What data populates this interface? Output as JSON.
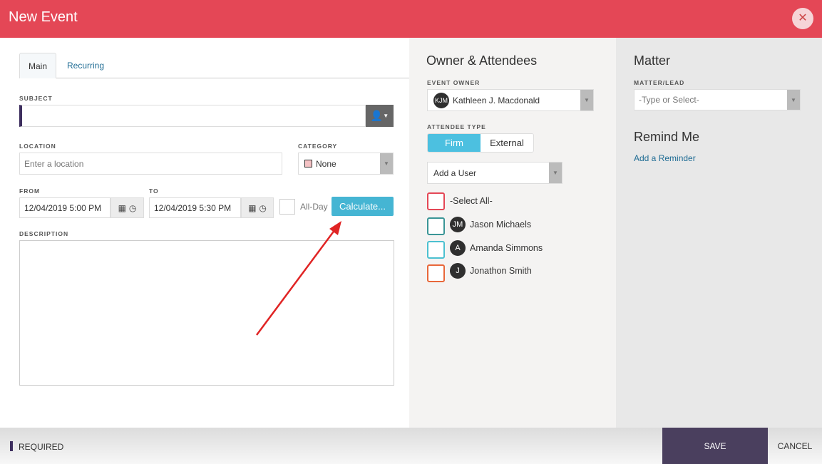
{
  "header": {
    "title": "New Event",
    "close_icon": "close-icon"
  },
  "tabs": [
    {
      "label": "Main",
      "active": true
    },
    {
      "label": "Recurring",
      "active": false
    }
  ],
  "form": {
    "subject": {
      "label": "SUBJECT",
      "value": ""
    },
    "location": {
      "label": "LOCATION",
      "placeholder": "Enter a location"
    },
    "category": {
      "label": "CATEGORY",
      "value": "None",
      "swatch": "#f4c2c4"
    },
    "from": {
      "label": "FROM",
      "value": "12/04/2019 5:00 PM"
    },
    "to": {
      "label": "TO",
      "value": "12/04/2019 5:30 PM"
    },
    "all_day": {
      "label": "All-Day",
      "checked": false
    },
    "calculate_label": "Calculate...",
    "description": {
      "label": "DESCRIPTION",
      "value": ""
    }
  },
  "owner": {
    "title": "Owner & Attendees",
    "event_owner_label": "EVENT OWNER",
    "event_owner": {
      "initials": "KJM",
      "name": "Kathleen J. Macdonald"
    },
    "attendee_type_label": "ATTENDEE TYPE",
    "attendee_types": [
      {
        "label": "Firm",
        "active": true
      },
      {
        "label": "External",
        "active": false
      }
    ],
    "add_user": "Add a User",
    "select_all": {
      "label": "-Select All-",
      "color": "#e44756"
    },
    "attendees": [
      {
        "initials": "JM",
        "name": "Jason Michaels",
        "color": "#3a9596"
      },
      {
        "initials": "A",
        "name": "Amanda Simmons",
        "color": "#4cc0d0"
      },
      {
        "initials": "J",
        "name": "Jonathon Smith",
        "color": "#e8673a"
      }
    ]
  },
  "matter": {
    "title": "Matter",
    "label": "MATTER/LEAD",
    "placeholder": "-Type or Select-"
  },
  "remind": {
    "title": "Remind Me",
    "link": "Add a Reminder"
  },
  "footer": {
    "required": "REQUIRED",
    "save": "SAVE",
    "cancel": "CANCEL"
  },
  "colors": {
    "header": "#e44756",
    "accent": "#4cc0e0",
    "save": "#4a3f5e",
    "link": "#1f6c94"
  }
}
